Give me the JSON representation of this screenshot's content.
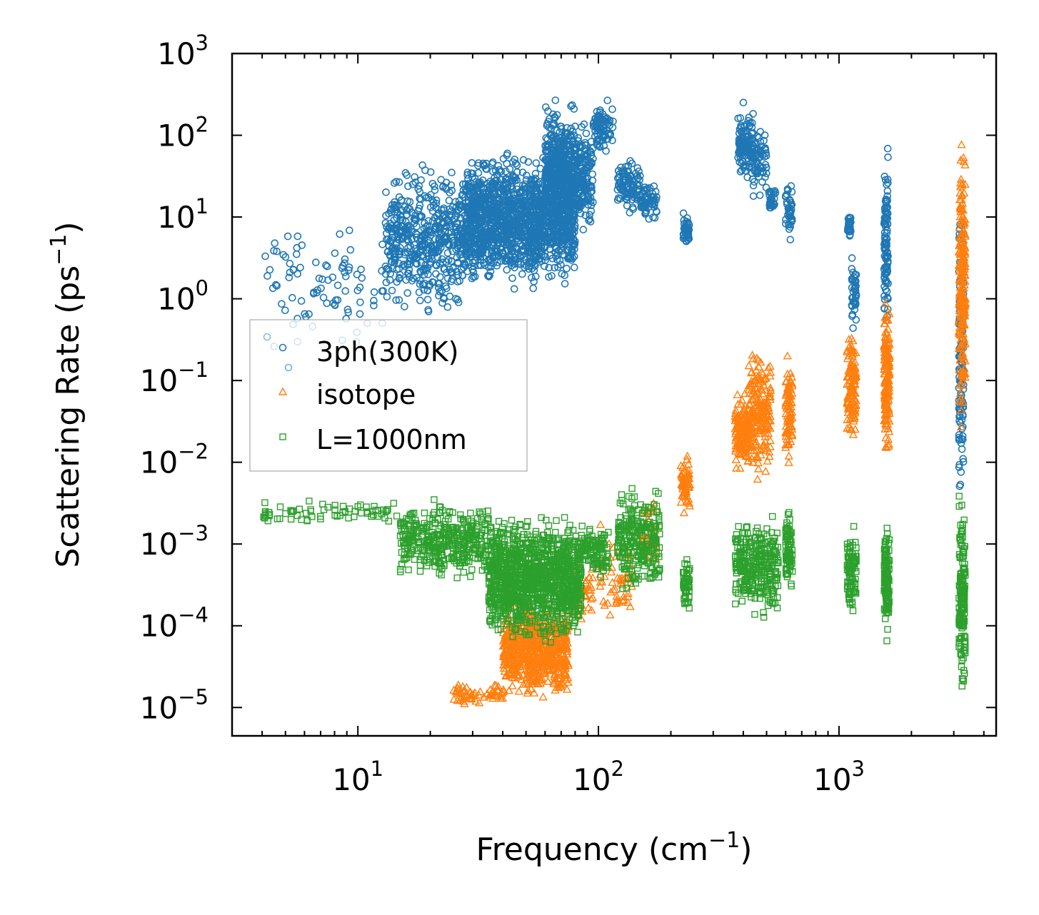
{
  "chart_data": {
    "type": "scatter",
    "title": "",
    "xlabel": {
      "main": "Frequency (cm",
      "sup": "−1",
      "end": ")"
    },
    "ylabel": {
      "main": "Scattering Rate (ps",
      "sup": "−1",
      "end": ")"
    },
    "xscale": "log",
    "yscale": "log",
    "xlim": [
      3,
      4500
    ],
    "ylim": [
      4.5e-06,
      1000
    ],
    "x_ticks": [
      {
        "value": 10,
        "base": "10",
        "exp": "1"
      },
      {
        "value": 100,
        "base": "10",
        "exp": "2"
      },
      {
        "value": 1000,
        "base": "10",
        "exp": "3"
      }
    ],
    "y_ticks": [
      {
        "value": 1e-05,
        "base": "10",
        "exp": "−5"
      },
      {
        "value": 0.0001,
        "base": "10",
        "exp": "−4"
      },
      {
        "value": 0.001,
        "base": "10",
        "exp": "−3"
      },
      {
        "value": 0.01,
        "base": "10",
        "exp": "−2"
      },
      {
        "value": 0.1,
        "base": "10",
        "exp": "−1"
      },
      {
        "value": 1,
        "base": "10",
        "exp": "0"
      },
      {
        "value": 10,
        "base": "10",
        "exp": "1"
      },
      {
        "value": 100,
        "base": "10",
        "exp": "2"
      },
      {
        "value": 1000,
        "base": "10",
        "exp": "3"
      }
    ],
    "legend_position": "center-left",
    "series": [
      {
        "name": "3ph(300K)",
        "marker": "circle",
        "color": "#1f77b4",
        "clusters": [
          {
            "x": [
              4,
              13
            ],
            "y": [
              0.15,
              12
            ],
            "n": 90
          },
          {
            "x": [
              13,
              28
            ],
            "y": [
              0.5,
              60
            ],
            "n": 500
          },
          {
            "x": [
              28,
              60
            ],
            "y": [
              1,
              80
            ],
            "n": 1100
          },
          {
            "x": [
              60,
              80
            ],
            "y": [
              1,
              400
            ],
            "n": 800
          },
          {
            "x": [
              80,
              95
            ],
            "y": [
              5,
              180
            ],
            "n": 160
          },
          {
            "x": [
              95,
              115
            ],
            "y": [
              50,
              300
            ],
            "n": 80
          },
          {
            "x": [
              120,
              150
            ],
            "y": [
              10,
              60
            ],
            "n": 100
          },
          {
            "x": [
              150,
              175
            ],
            "y": [
              8,
              30
            ],
            "n": 60
          },
          {
            "x": [
              225,
              240
            ],
            "y": [
              4,
              12
            ],
            "n": 40
          },
          {
            "x": [
              380,
              400
            ],
            "y": [
              30,
              200
            ],
            "n": 45
          },
          {
            "x": [
              400,
              440
            ],
            "y": [
              20,
              300
            ],
            "n": 70
          },
          {
            "x": [
              440,
              500
            ],
            "y": [
              15,
              150
            ],
            "n": 60
          },
          {
            "x": [
              510,
              545
            ],
            "y": [
              10,
              25
            ],
            "n": 30
          },
          {
            "x": [
              600,
              640
            ],
            "y": [
              5,
              30
            ],
            "n": 40
          },
          {
            "x": [
              1080,
              1120
            ],
            "y": [
              5,
              12
            ],
            "n": 25
          },
          {
            "x": [
              1130,
              1180
            ],
            "y": [
              0.3,
              5
            ],
            "n": 40
          },
          {
            "x": [
              1540,
              1600
            ],
            "y": [
              0.2,
              100
            ],
            "n": 100
          },
          {
            "x": [
              3150,
              3300
            ],
            "y": [
              0.0008,
              40
            ],
            "n": 120
          }
        ]
      },
      {
        "name": "isotope",
        "marker": "triangle",
        "color": "#ff7f0e",
        "clusters": [
          {
            "x": [
              25,
              40
            ],
            "y": [
              1e-05,
              2e-05
            ],
            "n": 60
          },
          {
            "x": [
              40,
              75
            ],
            "y": [
              1e-05,
              0.0003
            ],
            "n": 700
          },
          {
            "x": [
              78,
              95
            ],
            "y": [
              0.0001,
              0.0007
            ],
            "n": 50
          },
          {
            "x": [
              100,
              140
            ],
            "y": [
              0.0001,
              0.002
            ],
            "n": 60
          },
          {
            "x": [
              150,
              175
            ],
            "y": [
              0.0003,
              0.006
            ],
            "n": 50
          },
          {
            "x": [
              220,
              240
            ],
            "y": [
              0.002,
              0.015
            ],
            "n": 60
          },
          {
            "x": [
              370,
              420
            ],
            "y": [
              0.006,
              0.08
            ],
            "n": 150
          },
          {
            "x": [
              420,
              520
            ],
            "y": [
              0.005,
              0.3
            ],
            "n": 200
          },
          {
            "x": [
              600,
              640
            ],
            "y": [
              0.005,
              0.3
            ],
            "n": 80
          },
          {
            "x": [
              1080,
              1180
            ],
            "y": [
              0.015,
              0.5
            ],
            "n": 120
          },
          {
            "x": [
              1540,
              1620
            ],
            "y": [
              0.005,
              2.5
            ],
            "n": 160
          },
          {
            "x": [
              3150,
              3350
            ],
            "y": [
              0.02,
              130
            ],
            "n": 220
          }
        ]
      },
      {
        "name": "L=1000nm",
        "marker": "square",
        "color": "#2ca02c",
        "clusters": [
          {
            "x": [
              4,
              15
            ],
            "y": [
              0.0015,
              0.004
            ],
            "n": 70
          },
          {
            "x": [
              15,
              35
            ],
            "y": [
              0.0003,
              0.004
            ],
            "n": 400
          },
          {
            "x": [
              35,
              85
            ],
            "y": [
              5e-05,
              0.003
            ],
            "n": 1200
          },
          {
            "x": [
              85,
              110
            ],
            "y": [
              0.0003,
              0.002
            ],
            "n": 100
          },
          {
            "x": [
              120,
              180
            ],
            "y": [
              0.0002,
              0.006
            ],
            "n": 250
          },
          {
            "x": [
              225,
              240
            ],
            "y": [
              0.0001,
              0.001
            ],
            "n": 60
          },
          {
            "x": [
              370,
              560
            ],
            "y": [
              0.0001,
              0.003
            ],
            "n": 300
          },
          {
            "x": [
              600,
              640
            ],
            "y": [
              0.0002,
              0.003
            ],
            "n": 80
          },
          {
            "x": [
              1080,
              1180
            ],
            "y": [
              0.0001,
              0.002
            ],
            "n": 100
          },
          {
            "x": [
              1540,
              1620
            ],
            "y": [
              5e-05,
              0.0025
            ],
            "n": 120
          },
          {
            "x": [
              3150,
              3350
            ],
            "y": [
              1e-05,
              0.006
            ],
            "n": 160
          }
        ]
      }
    ]
  }
}
